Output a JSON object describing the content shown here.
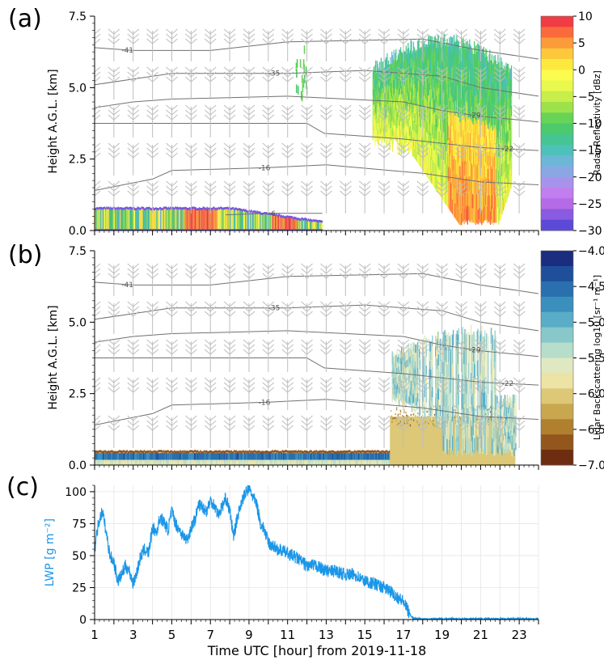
{
  "figure": {
    "xlabel": "Time UTC [hour] from 2019-11-18"
  },
  "panels": [
    {
      "letter": "(a)",
      "ylabel": "Height A.G.L. [km]",
      "ylim": [
        0,
        7.5
      ],
      "yticks": [
        "0.0",
        "2.5",
        "5.0",
        "7.5"
      ],
      "colorbar": {
        "label": "Radar Reflectivity [dBz]",
        "range": [
          -30,
          10
        ],
        "ticks": [
          "10",
          "5",
          "0",
          "−5",
          "−10",
          "−15",
          "−20",
          "−25",
          "−30"
        ],
        "colors": [
          "#f03c45",
          "#fb6a3c",
          "#fc9b3a",
          "#fdc83c",
          "#fde93e",
          "#fbfb50",
          "#e8f84c",
          "#c7ee4a",
          "#9ee24b",
          "#68d455",
          "#4cca6c",
          "#46c593",
          "#4ec1b9",
          "#6cb7d5",
          "#8aa7e4",
          "#a893ec",
          "#c17eee",
          "#b56ae8",
          "#8a5ae0",
          "#5a4ad6"
        ]
      },
      "contour_labels": [
        "-41",
        "-35",
        "-29",
        "-22",
        "-16",
        "-6"
      ]
    },
    {
      "letter": "(b)",
      "ylabel": "Height A.G.L. [km]",
      "ylim": [
        0,
        7.5
      ],
      "yticks": [
        "0.0",
        "2.5",
        "5.0",
        "7.5"
      ],
      "colorbar": {
        "label": "Lidar Backscattering log10 [sr⁻¹ m⁻¹]",
        "range": [
          -7,
          -4
        ],
        "ticks": [
          "−4.0",
          "−4.5",
          "−5.0",
          "−5.5",
          "−6.0",
          "−6.5",
          "−7.0"
        ],
        "colors": [
          "#1a2d7e",
          "#1f4f9a",
          "#2a6fae",
          "#3b8fbc",
          "#59adc6",
          "#88c8cb",
          "#b7ddcb",
          "#dfe8c0",
          "#ece3a4",
          "#dcc876",
          "#c9a74e",
          "#b0802f",
          "#93561c",
          "#6e2c10"
        ]
      },
      "contour_labels": [
        "-41",
        "-35",
        "-29",
        "-22",
        "-16"
      ]
    },
    {
      "letter": "(c)",
      "ylabel": "LWP [g m⁻²]",
      "ylim": [
        0,
        105
      ],
      "yticks": [
        "0",
        "25",
        "50",
        "75",
        "100"
      ],
      "line_color": "#1a96e8"
    }
  ],
  "xaxis": {
    "range": [
      1,
      24
    ],
    "ticks": [
      "1",
      "3",
      "5",
      "7",
      "9",
      "11",
      "13",
      "15",
      "17",
      "19",
      "21",
      "23"
    ]
  },
  "chart_data": [
    {
      "type": "heatmap",
      "title": "",
      "xlabel": "",
      "ylabel": "Height A.G.L. [km]",
      "xlim": [
        1,
        24
      ],
      "ylim": [
        0,
        7.5
      ],
      "zlabel": "Radar Reflectivity [dBz]",
      "zlim": [
        -30,
        10
      ],
      "features": [
        {
          "name": "low liquid layer",
          "x": [
            1,
            12.8
          ],
          "y": [
            0,
            0.8
          ],
          "z_range": [
            -30,
            10
          ]
        },
        {
          "name": "upper cloud fragments",
          "x": [
            11.4,
            12.1
          ],
          "y": [
            4.3,
            6.5
          ],
          "z_range": [
            -15,
            -10
          ]
        },
        {
          "name": "precipitating ice cloud",
          "x": [
            15.4,
            22.5
          ],
          "y": [
            0.2,
            6.8
          ],
          "z_range": [
            -20,
            10
          ]
        }
      ],
      "isotherms_degC": [
        {
          "label": "-41",
          "x": [
            1,
            3,
            7,
            11,
            18,
            21,
            24
          ],
          "y": [
            6.4,
            6.3,
            6.3,
            6.6,
            6.7,
            6.3,
            6.0
          ]
        },
        {
          "label": "-35",
          "x": [
            1,
            3,
            5,
            11,
            15,
            19,
            21,
            24
          ],
          "y": [
            5.1,
            5.3,
            5.5,
            5.5,
            5.6,
            5.4,
            5.0,
            4.7
          ]
        },
        {
          "label": "-29",
          "x": [
            1,
            3,
            5,
            11,
            17,
            19,
            21,
            24
          ],
          "y": [
            4.3,
            4.5,
            4.6,
            4.7,
            4.5,
            4.2,
            4.0,
            3.8
          ]
        },
        {
          "label": "-22",
          "x": [
            1,
            6,
            10,
            12,
            12.9,
            17,
            21,
            24
          ],
          "y": [
            3.75,
            3.75,
            3.75,
            3.75,
            3.4,
            3.2,
            2.9,
            2.8
          ]
        },
        {
          "label": "-16",
          "x": [
            1,
            4,
            5,
            10,
            13,
            18,
            21,
            24
          ],
          "y": [
            1.4,
            1.8,
            2.1,
            2.2,
            2.3,
            2.0,
            1.7,
            1.6
          ]
        },
        {
          "label": "-6",
          "x": [
            7.8,
            10,
            12.8
          ],
          "y": [
            0.55,
            0.6,
            0.6
          ]
        }
      ]
    },
    {
      "type": "heatmap",
      "title": "",
      "xlabel": "",
      "ylabel": "Height A.G.L. [km]",
      "xlim": [
        1,
        24
      ],
      "ylim": [
        0,
        7.5
      ],
      "zlabel": "Lidar Backscattering log10 [sr⁻¹ m⁻¹]",
      "zlim": [
        -7,
        -4
      ],
      "features": [
        {
          "name": "liquid layer",
          "x": [
            1,
            17
          ],
          "y": [
            0,
            0.45
          ],
          "z_range": [
            -6,
            -4
          ]
        },
        {
          "name": "aerosol / clear air",
          "x": [
            16.2,
            22.8
          ],
          "y": [
            0,
            2.0
          ],
          "z_range": [
            -6.5,
            -5.8
          ]
        },
        {
          "name": "ice cloud",
          "x": [
            16.5,
            22.8
          ],
          "y": [
            0.2,
            4.7
          ],
          "z_range": [
            -5.8,
            -4.8
          ]
        }
      ],
      "isotherms_degC": [
        {
          "label": "-41",
          "x": [
            1,
            3,
            7,
            11,
            18,
            21,
            24
          ],
          "y": [
            6.4,
            6.3,
            6.3,
            6.6,
            6.7,
            6.3,
            6.0
          ]
        },
        {
          "label": "-35",
          "x": [
            1,
            3,
            5,
            11,
            15,
            19,
            21,
            24
          ],
          "y": [
            5.1,
            5.3,
            5.5,
            5.5,
            5.6,
            5.4,
            5.0,
            4.7
          ]
        },
        {
          "label": "-29",
          "x": [
            1,
            3,
            5,
            11,
            17,
            19,
            21,
            24
          ],
          "y": [
            4.3,
            4.5,
            4.6,
            4.7,
            4.5,
            4.2,
            4.0,
            3.8
          ]
        },
        {
          "label": "-22",
          "x": [
            1,
            6,
            10,
            12,
            12.9,
            17,
            21,
            24
          ],
          "y": [
            3.75,
            3.75,
            3.75,
            3.75,
            3.4,
            3.2,
            2.9,
            2.8
          ]
        },
        {
          "label": "-16",
          "x": [
            1,
            4,
            5,
            10,
            13,
            18,
            21,
            24
          ],
          "y": [
            1.4,
            1.8,
            2.1,
            2.2,
            2.3,
            2.0,
            1.7,
            1.6
          ]
        }
      ]
    },
    {
      "type": "line",
      "title": "",
      "xlabel": "Time UTC [hour] from 2019-11-18",
      "ylabel": "LWP [g m⁻²]",
      "xlim": [
        1,
        24
      ],
      "ylim": [
        0,
        105
      ],
      "grid": true,
      "series": [
        {
          "x": [
            1,
            1.2,
            1.4,
            1.6,
            1.8,
            2.0,
            2.2,
            2.4,
            2.6,
            2.8,
            3.0,
            3.2,
            3.4,
            3.6,
            3.8,
            4.0,
            4.2,
            4.4,
            4.6,
            4.8,
            5.0,
            5.2,
            5.4,
            5.6,
            5.8,
            6.0,
            6.2,
            6.4,
            6.6,
            6.8,
            7.0,
            7.2,
            7.4,
            7.6,
            7.8,
            8.0,
            8.2,
            8.4,
            8.6,
            8.8,
            9.0,
            9.2,
            9.4,
            9.6,
            9.8,
            10.0,
            10.5,
            11.0,
            11.5,
            12.0,
            12.5,
            13.0,
            13.5,
            14.0,
            14.5,
            15.0,
            15.5,
            16.0,
            16.5,
            17.0,
            17.3,
            17.5,
            18.0,
            19.0,
            20.0,
            21.0,
            22.0,
            23.0,
            24.0
          ],
          "y": [
            55,
            75,
            85,
            68,
            50,
            45,
            30,
            35,
            42,
            38,
            28,
            38,
            50,
            55,
            52,
            72,
            68,
            80,
            76,
            70,
            85,
            75,
            70,
            65,
            62,
            72,
            78,
            90,
            88,
            85,
            93,
            90,
            82,
            88,
            95,
            85,
            65,
            80,
            92,
            98,
            103,
            96,
            90,
            75,
            70,
            60,
            55,
            52,
            48,
            42,
            42,
            38,
            38,
            35,
            35,
            30,
            28,
            25,
            20,
            14,
            5,
            1,
            0.5,
            0.5,
            0.5,
            0.5,
            0.5,
            0.5,
            0.5
          ]
        }
      ]
    }
  ]
}
